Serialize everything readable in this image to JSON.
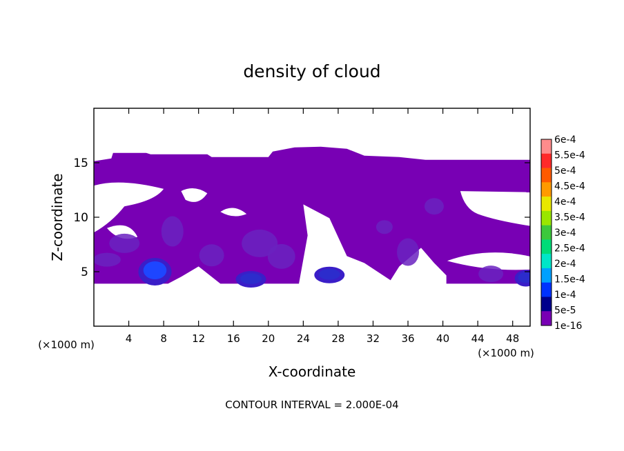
{
  "chart_data": {
    "type": "heatmap",
    "title": "density of cloud",
    "xlabel": "X-coordinate",
    "ylabel": "Z-coordinate",
    "x_unit_left": "(×1000 m)",
    "x_unit_right": "(×1000 m)",
    "xlim": [
      0,
      50
    ],
    "ylim": [
      0,
      20
    ],
    "xticks": [
      4,
      8,
      12,
      16,
      20,
      24,
      28,
      32,
      36,
      40,
      44,
      48
    ],
    "yticks": [
      5,
      10,
      15
    ],
    "footer": "CONTOUR INTERVAL = 2.000E-04",
    "colorbar": {
      "labels": [
        "6e-4",
        "5.5e-4",
        "5e-4",
        "4.5e-4",
        "4e-4",
        "3.5e-4",
        "3e-4",
        "2.5e-4",
        "2e-4",
        "1.5e-4",
        "1e-4",
        "5e-5",
        "1e-16"
      ],
      "colors": [
        "#ff8c8c",
        "#ff2a2a",
        "#ff5a00",
        "#ff9a00",
        "#e8e800",
        "#9ae600",
        "#3cc83c",
        "#00dc78",
        "#00e6c8",
        "#00a0ff",
        "#0032ff",
        "#00008c",
        "#7800b4"
      ]
    },
    "colors": {
      "base": "#7800b4",
      "mid": "#6a22c0",
      "high": "#3a1ec8",
      "core": "#1e46ff"
    },
    "cloud_layer": {
      "base_z": 3.9,
      "top_z": 15.9,
      "main_value": "1e-16",
      "cores": [
        {
          "x": 7.0,
          "z": 5.0,
          "level": "1e-4"
        },
        {
          "x": 18.0,
          "z": 4.3,
          "level": "5e-5"
        },
        {
          "x": 27.0,
          "z": 4.7,
          "level": "5e-5"
        },
        {
          "x": 49.5,
          "z": 4.4,
          "level": "5e-5"
        }
      ]
    }
  }
}
